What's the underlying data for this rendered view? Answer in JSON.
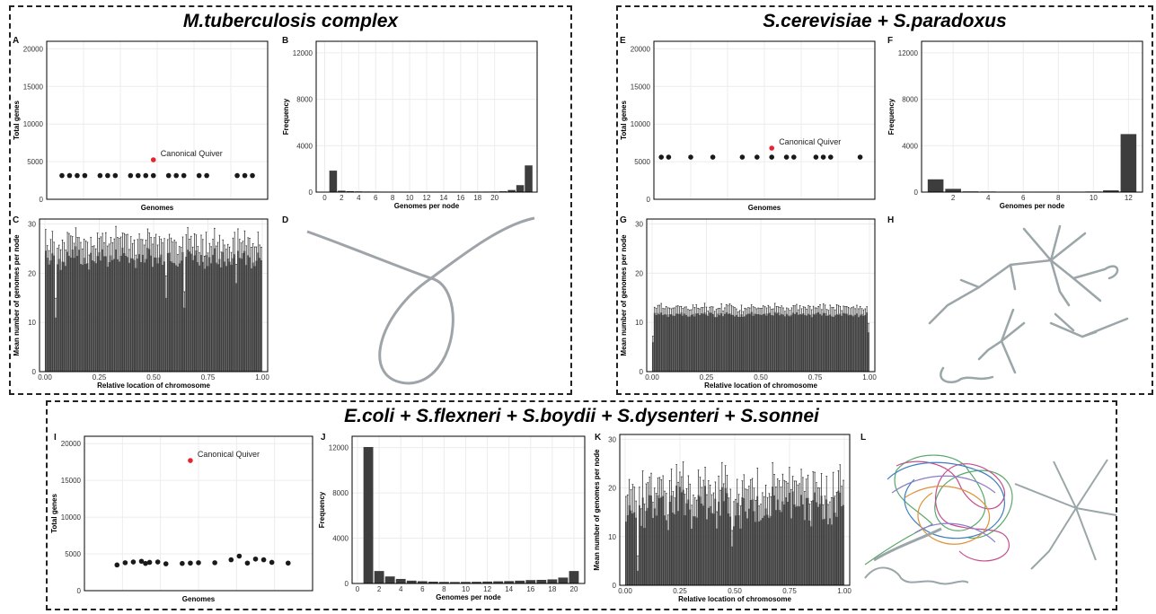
{
  "groups": {
    "mtb": {
      "title": "M.tuberculosis complex"
    },
    "sc": {
      "title": "S.cerevisiae + S.paradoxus"
    },
    "ecoli": {
      "title": "E.coli + S.flexneri + S.boydii + S.dysenteri + S.sonnei"
    }
  },
  "panel_letters": {
    "A": "A",
    "B": "B",
    "C": "C",
    "D": "D",
    "E": "E",
    "F": "F",
    "G": "G",
    "H": "H",
    "I": "I",
    "J": "J",
    "K": "K",
    "L": "L"
  },
  "colors": {
    "points": "#1a1a1a",
    "highlight": "#e6262f",
    "bars": "#3d3d3d",
    "grid": "#ececec",
    "axis": "#000000"
  },
  "chart_data": [
    {
      "id": "A",
      "type": "scatter",
      "xlabel": "Genomes",
      "ylabel": "Total genes",
      "ylim": [
        0,
        21000
      ],
      "yticks": [
        0,
        5000,
        10000,
        15000,
        20000
      ],
      "annotation": "Canonical Quiver",
      "points": [
        {
          "x": 1,
          "y": 3150
        },
        {
          "x": 2,
          "y": 3150
        },
        {
          "x": 3,
          "y": 3150
        },
        {
          "x": 4,
          "y": 3150
        },
        {
          "x": 6,
          "y": 3150
        },
        {
          "x": 7,
          "y": 3150
        },
        {
          "x": 8,
          "y": 3150
        },
        {
          "x": 10,
          "y": 3150
        },
        {
          "x": 11,
          "y": 3150
        },
        {
          "x": 12,
          "y": 3150
        },
        {
          "x": 13,
          "y": 3150
        },
        {
          "x": 15,
          "y": 3150
        },
        {
          "x": 16,
          "y": 3150
        },
        {
          "x": 17,
          "y": 3150
        },
        {
          "x": 19,
          "y": 3150
        },
        {
          "x": 20,
          "y": 3150
        },
        {
          "x": 24,
          "y": 3150
        },
        {
          "x": 25,
          "y": 3150
        },
        {
          "x": 26,
          "y": 3150
        }
      ],
      "highlight": {
        "x": 13,
        "y": 5250
      },
      "xrange": [
        -1,
        28
      ]
    },
    {
      "id": "B",
      "type": "bar",
      "xlabel": "Genomes per node",
      "ylabel": "Frequency",
      "ylim": [
        0,
        13000
      ],
      "yticks": [
        0,
        4000,
        8000,
        12000
      ],
      "xticks": [
        0,
        2,
        4,
        6,
        8,
        10,
        12,
        14,
        16,
        18,
        20
      ],
      "xrange": [
        -1,
        25
      ],
      "x": [
        1,
        2,
        3,
        4,
        5,
        6,
        7,
        8,
        9,
        10,
        11,
        12,
        13,
        14,
        15,
        16,
        17,
        18,
        19,
        20,
        21,
        22,
        23,
        24
      ],
      "values": [
        1850,
        120,
        80,
        60,
        50,
        45,
        40,
        40,
        38,
        38,
        38,
        38,
        38,
        38,
        38,
        38,
        40,
        42,
        45,
        50,
        70,
        180,
        600,
        2300
      ]
    },
    {
      "id": "C",
      "type": "bar",
      "xlabel": "Relative location of chromosome",
      "ylabel": "Mean number of genomes per node",
      "ylim": [
        0,
        31
      ],
      "yticks": [
        0,
        10,
        20,
        30
      ],
      "xticks": [
        "0.00",
        "0.25",
        "0.50",
        "0.75",
        "1.00"
      ],
      "bins": 130,
      "mean": 23,
      "variation": 1.8,
      "error": 4,
      "dips": [
        {
          "x": 0.05,
          "y": 11
        },
        {
          "x": 0.56,
          "y": 15
        },
        {
          "x": 0.64,
          "y": 13
        },
        {
          "x": 0.88,
          "y": 18
        }
      ]
    },
    {
      "id": "E",
      "type": "scatter",
      "xlabel": "Genomes",
      "ylabel": "Total genes",
      "ylim": [
        0,
        21000
      ],
      "yticks": [
        0,
        5000,
        10000,
        15000,
        20000
      ],
      "annotation": "Canonical Quiver",
      "points": [
        {
          "x": 1,
          "y": 5600
        },
        {
          "x": 2,
          "y": 5600
        },
        {
          "x": 5,
          "y": 5600
        },
        {
          "x": 8,
          "y": 5600
        },
        {
          "x": 12,
          "y": 5600
        },
        {
          "x": 14,
          "y": 5600
        },
        {
          "x": 16,
          "y": 5600
        },
        {
          "x": 18,
          "y": 5600
        },
        {
          "x": 19,
          "y": 5600
        },
        {
          "x": 22,
          "y": 5600
        },
        {
          "x": 23,
          "y": 5600
        },
        {
          "x": 24,
          "y": 5600
        },
        {
          "x": 28,
          "y": 5600
        }
      ],
      "highlight": {
        "x": 16,
        "y": 6800
      },
      "xrange": [
        0,
        30
      ]
    },
    {
      "id": "F",
      "type": "bar",
      "xlabel": "Genomes per node",
      "ylabel": "Frequency",
      "ylim": [
        0,
        13000
      ],
      "yticks": [
        0,
        4000,
        8000,
        12000
      ],
      "xticks": [
        2,
        4,
        6,
        8,
        10,
        12
      ],
      "xrange": [
        0.2,
        12.8
      ],
      "x": [
        1,
        2,
        3,
        4,
        5,
        6,
        7,
        8,
        9,
        10,
        11,
        12
      ],
      "values": [
        1100,
        280,
        60,
        50,
        40,
        40,
        40,
        40,
        40,
        50,
        150,
        5000
      ]
    },
    {
      "id": "G",
      "type": "bar",
      "xlabel": "Relative location of chromosome",
      "ylabel": "Mean number of genomes per node",
      "ylim": [
        0,
        31
      ],
      "yticks": [
        0,
        10,
        20,
        30
      ],
      "xticks": [
        "0.00",
        "0.25",
        "0.50",
        "0.75",
        "1.00"
      ],
      "bins": 130,
      "mean": 11.6,
      "variation": 0.4,
      "error": 1.6,
      "dips": [
        {
          "x": 0.005,
          "y": 6
        },
        {
          "x": 0.995,
          "y": 8
        }
      ]
    },
    {
      "id": "I",
      "type": "scatter",
      "xlabel": "Genomes",
      "ylabel": "Total genes",
      "ylim": [
        0,
        21000
      ],
      "yticks": [
        0,
        5000,
        10000,
        15000,
        20000
      ],
      "annotation": "Canonical Quiver",
      "points": [
        {
          "x": 1,
          "y": 3500
        },
        {
          "x": 2,
          "y": 3800
        },
        {
          "x": 3,
          "y": 3900
        },
        {
          "x": 4,
          "y": 4000
        },
        {
          "x": 4.5,
          "y": 3700
        },
        {
          "x": 5,
          "y": 3850
        },
        {
          "x": 6,
          "y": 3900
        },
        {
          "x": 7,
          "y": 3650
        },
        {
          "x": 9,
          "y": 3700
        },
        {
          "x": 10,
          "y": 3750
        },
        {
          "x": 11,
          "y": 3800
        },
        {
          "x": 13,
          "y": 3800
        },
        {
          "x": 15,
          "y": 4200
        },
        {
          "x": 16,
          "y": 4700
        },
        {
          "x": 17,
          "y": 3750
        },
        {
          "x": 18,
          "y": 4300
        },
        {
          "x": 19,
          "y": 4200
        },
        {
          "x": 20,
          "y": 3850
        },
        {
          "x": 22,
          "y": 3750
        }
      ],
      "highlight": {
        "x": 10,
        "y": 17700
      },
      "xrange": [
        -3,
        25
      ]
    },
    {
      "id": "J",
      "type": "bar",
      "xlabel": "Genomes per node",
      "ylabel": "Frequency",
      "ylim": [
        0,
        13000
      ],
      "yticks": [
        0,
        4000,
        8000,
        12000
      ],
      "xticks": [
        0,
        2,
        4,
        6,
        8,
        10,
        12,
        14,
        16,
        18,
        20
      ],
      "xrange": [
        -0.5,
        21
      ],
      "x": [
        1,
        2,
        3,
        4,
        5,
        6,
        7,
        8,
        9,
        10,
        11,
        12,
        13,
        14,
        15,
        16,
        17,
        18,
        19,
        20
      ],
      "values": [
        12050,
        1100,
        620,
        400,
        250,
        200,
        160,
        140,
        130,
        140,
        150,
        170,
        190,
        210,
        250,
        300,
        320,
        360,
        520,
        1100
      ]
    },
    {
      "id": "K",
      "type": "bar",
      "xlabel": "Relative location of chromosome",
      "ylabel": "Mean number of genomes per node",
      "ylim": [
        0,
        31
      ],
      "yticks": [
        0,
        10,
        20,
        30
      ],
      "xticks": [
        "0.00",
        "0.25",
        "0.50",
        "0.75",
        "1.00"
      ],
      "bins": 130,
      "mean": 16,
      "variation": 3.5,
      "error": 5,
      "dips": [
        {
          "x": 0.06,
          "y": 3
        },
        {
          "x": 0.49,
          "y": 8
        }
      ]
    }
  ]
}
